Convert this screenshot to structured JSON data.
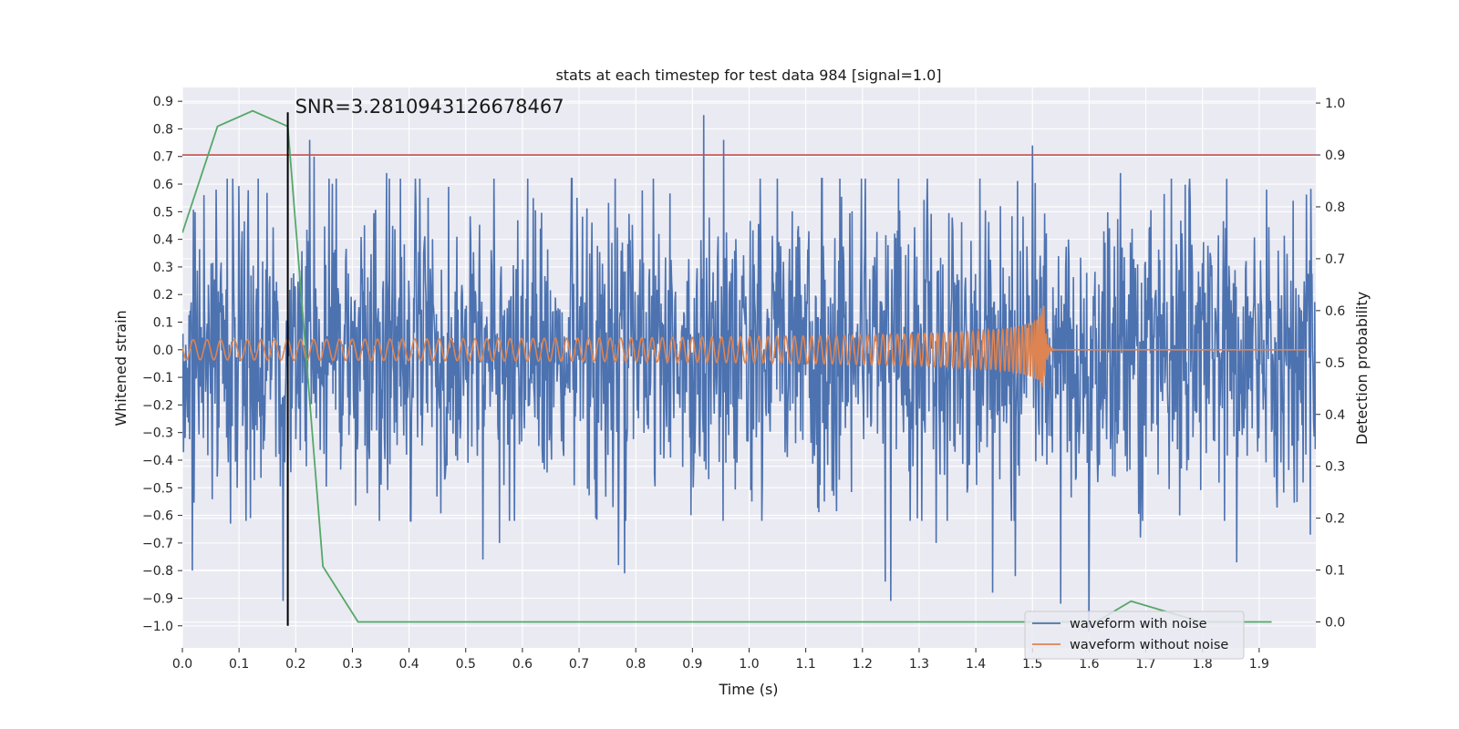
{
  "chart_data": {
    "type": "line",
    "title": "stats at each timestep for test data 984 [signal=1.0]",
    "xlabel": "Time (s)",
    "ylabel_left": "Whitened strain",
    "ylabel_right": "Detection probability",
    "xlim": [
      0.0,
      2.0
    ],
    "ylim_left": [
      -1.08,
      0.95
    ],
    "ylim_right": [
      -0.05,
      1.03
    ],
    "x_ticks": [
      "0.0",
      "0.1",
      "0.2",
      "0.3",
      "0.4",
      "0.5",
      "0.6",
      "0.7",
      "0.8",
      "0.9",
      "1.0",
      "1.1",
      "1.2",
      "1.3",
      "1.4",
      "1.5",
      "1.6",
      "1.7",
      "1.8",
      "1.9"
    ],
    "y_ticks_left": [
      "0.9",
      "0.8",
      "0.7",
      "0.6",
      "0.5",
      "0.4",
      "0.3",
      "0.2",
      "0.1",
      "0.0",
      "−0.1",
      "−0.2",
      "−0.3",
      "−0.4",
      "−0.5",
      "−0.6",
      "−0.7",
      "−0.8",
      "−0.9",
      "−1.0"
    ],
    "y_ticks_right": [
      "1.0",
      "0.9",
      "0.8",
      "0.7",
      "0.6",
      "0.5",
      "0.4",
      "0.3",
      "0.2",
      "0.1",
      "0.0"
    ],
    "grid": true,
    "legend_position": "lower-right",
    "annotation": {
      "text": "SNR=3.2810943126678467",
      "x": 0.186
    },
    "marker_line": {
      "x": 0.186,
      "y0": -1.0,
      "y1": 0.86,
      "color": "#000000"
    },
    "threshold": {
      "y_right": 0.9,
      "color": "#c44e52"
    },
    "series": [
      {
        "name": "waveform with noise",
        "color": "#4c72b0",
        "axis": "left",
        "kind": "noise",
        "samples": 2048,
        "amplitude": 0.26,
        "peaks": [
          [
            0.018,
            -0.8
          ],
          [
            0.038,
            0.56
          ],
          [
            0.06,
            0.58
          ],
          [
            0.085,
            -0.63
          ],
          [
            0.12,
            -0.61
          ],
          [
            0.178,
            -0.91
          ],
          [
            0.225,
            0.76
          ],
          [
            0.232,
            0.7
          ],
          [
            0.36,
            0.64
          ],
          [
            0.47,
            0.59
          ],
          [
            0.53,
            -0.76
          ],
          [
            0.56,
            -0.7
          ],
          [
            0.77,
            -0.78
          ],
          [
            0.78,
            -0.81
          ],
          [
            0.92,
            0.85
          ],
          [
            0.955,
            0.76
          ],
          [
            1.05,
            0.62
          ],
          [
            1.16,
            0.62
          ],
          [
            1.25,
            -0.91
          ],
          [
            1.24,
            -0.84
          ],
          [
            1.33,
            -0.7
          ],
          [
            1.35,
            -0.62
          ],
          [
            1.43,
            -0.88
          ],
          [
            1.47,
            -0.82
          ],
          [
            1.5,
            0.74
          ],
          [
            1.55,
            -0.92
          ],
          [
            1.6,
            -1.02
          ],
          [
            1.655,
            0.64
          ],
          [
            1.69,
            -0.68
          ],
          [
            1.76,
            -0.6
          ],
          [
            1.86,
            -0.77
          ],
          [
            1.96,
            0.54
          ],
          [
            1.99,
            -0.67
          ]
        ]
      },
      {
        "name": "waveform without noise",
        "color": "#dd8452",
        "axis": "left",
        "kind": "chirp",
        "merger_time": 1.52,
        "amplitude_max": 0.16
      },
      {
        "name": "Detection probability",
        "color": "#55a868",
        "axis": "right",
        "kind": "line",
        "x": [
          0.0,
          0.062,
          0.124,
          0.186,
          0.248,
          0.31,
          0.372,
          0.434,
          0.496,
          0.558,
          0.62,
          0.682,
          0.744,
          0.806,
          0.868,
          0.93,
          0.992,
          1.054,
          1.116,
          1.178,
          1.24,
          1.302,
          1.364,
          1.426,
          1.488,
          1.55,
          1.612,
          1.674,
          1.736,
          1.798,
          1.86,
          1.922
        ],
        "y": [
          0.75,
          0.955,
          0.985,
          0.955,
          0.107,
          0.0,
          0.0,
          0.0,
          0.0,
          0.0,
          0.0,
          0.0,
          0.0,
          0.0,
          0.0,
          0.0,
          0.0,
          0.0,
          0.0,
          0.0,
          0.0,
          0.0,
          0.0,
          0.0,
          0.0,
          0.0,
          0.0,
          0.04,
          0.02,
          0.0,
          0.0,
          0.0
        ]
      }
    ]
  }
}
